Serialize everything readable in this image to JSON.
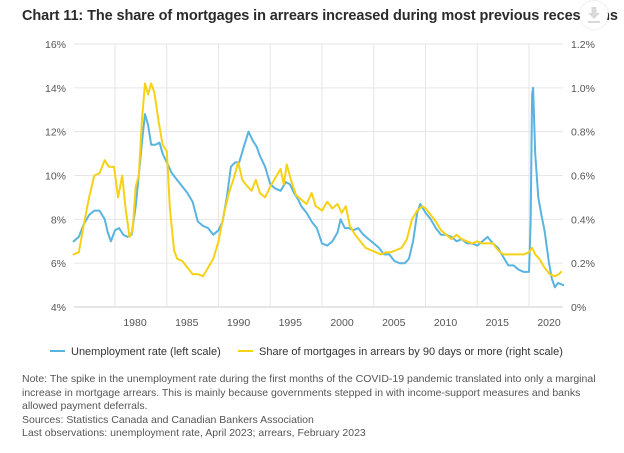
{
  "header": {
    "title": "Chart 11: The share of mortgages in arrears increased during most previous recessions",
    "download_icon": "download-icon"
  },
  "legend": [
    {
      "label": "Unemployment rate (left scale)",
      "color": "#5ab4e0"
    },
    {
      "label": "Share of mortgages in arrears by 90 days or more (right scale)",
      "color": "#f7d116"
    }
  ],
  "notes": {
    "note": "Note: The spike in the unemployment rate during the first months of the COVID-19 pandemic translated into only a marginal increase in mortgage arrears. This is mainly because governments stepped in with income-support measures and banks allowed payment deferrals.",
    "sources": "Sources: Statistics Canada and Canadian Bankers Association",
    "last_observations": "Last observations: unemployment rate, April 2023; arrears, February 2023"
  },
  "chart_data": {
    "type": "line",
    "title": "Chart 11: The share of mortgages in arrears increased during most previous recessions",
    "xlabel": "",
    "ylabel_left": "",
    "ylabel_right": "",
    "xlim": [
      1975.8,
      2023.4
    ],
    "x_ticks": [
      1980,
      1985,
      1990,
      1995,
      2000,
      2005,
      2010,
      2015,
      2020
    ],
    "x_tick_labels": [
      "1980",
      "1985",
      "1990",
      "1995",
      "2000",
      "2005",
      "2010",
      "2015",
      "2020"
    ],
    "ylim_left": [
      4,
      16
    ],
    "y_ticks_left": [
      4,
      6,
      8,
      10,
      12,
      14,
      16
    ],
    "y_tick_labels_left": [
      "4%",
      "6%",
      "8%",
      "10%",
      "12%",
      "14%",
      "16%"
    ],
    "ylim_right": [
      0,
      1.2
    ],
    "y_ticks_right": [
      0,
      0.2,
      0.4,
      0.6,
      0.8,
      1.0,
      1.2
    ],
    "y_tick_labels_right": [
      "0%",
      "0.2%",
      "0.4%",
      "0.6%",
      "0.8%",
      "1.0%",
      "1.2%"
    ],
    "grid": true,
    "legend_position": "bottom",
    "series": [
      {
        "name": "Unemployment rate (left scale)",
        "axis": "left",
        "color": "#5ab4e0",
        "x": [
          1976.0,
          1976.5,
          1977.0,
          1977.5,
          1978.0,
          1978.5,
          1979.0,
          1979.3,
          1979.6,
          1980.0,
          1980.4,
          1980.8,
          1981.2,
          1981.6,
          1982.0,
          1982.3,
          1982.6,
          1982.9,
          1983.2,
          1983.5,
          1983.9,
          1984.3,
          1984.6,
          1985.0,
          1985.5,
          1986.0,
          1986.5,
          1987.0,
          1987.5,
          1988.0,
          1988.5,
          1989.0,
          1989.5,
          1990.0,
          1990.4,
          1990.8,
          1991.2,
          1991.6,
          1992.0,
          1992.5,
          1992.9,
          1993.3,
          1993.7,
          1994.0,
          1994.5,
          1995.0,
          1995.5,
          1996.0,
          1996.5,
          1996.9,
          1997.3,
          1997.7,
          1998.0,
          1998.5,
          1999.0,
          1999.5,
          2000.0,
          2000.5,
          2001.0,
          2001.5,
          2001.8,
          2002.2,
          2002.6,
          2003.0,
          2003.5,
          2004.0,
          2004.5,
          2005.0,
          2005.5,
          2006.0,
          2006.5,
          2007.0,
          2007.5,
          2008.0,
          2008.4,
          2008.8,
          2009.2,
          2009.5,
          2010.0,
          2010.5,
          2011.0,
          2011.5,
          2012.0,
          2012.5,
          2013.0,
          2013.5,
          2014.0,
          2014.5,
          2015.0,
          2015.5,
          2016.0,
          2016.5,
          2017.0,
          2017.5,
          2018.0,
          2018.5,
          2019.0,
          2019.5,
          2020.0,
          2020.15,
          2020.3,
          2020.4,
          2020.6,
          2020.9,
          2021.2,
          2021.5,
          2021.9,
          2022.2,
          2022.5,
          2022.8,
          2023.3
        ],
        "values": [
          7.0,
          7.2,
          7.8,
          8.2,
          8.4,
          8.4,
          8.0,
          7.4,
          7.0,
          7.5,
          7.6,
          7.3,
          7.2,
          7.3,
          8.6,
          10.0,
          11.5,
          12.8,
          12.3,
          11.4,
          11.4,
          11.5,
          11.0,
          10.6,
          10.1,
          9.8,
          9.5,
          9.2,
          8.8,
          7.9,
          7.7,
          7.6,
          7.3,
          7.5,
          7.9,
          9.0,
          10.4,
          10.6,
          10.6,
          11.4,
          12.0,
          11.6,
          11.3,
          10.9,
          10.4,
          9.6,
          9.4,
          9.3,
          9.7,
          9.6,
          9.2,
          8.9,
          8.6,
          8.3,
          7.9,
          7.6,
          6.9,
          6.8,
          7.0,
          7.4,
          8.0,
          7.6,
          7.6,
          7.5,
          7.6,
          7.3,
          7.1,
          6.9,
          6.7,
          6.4,
          6.4,
          6.1,
          6.0,
          6.0,
          6.2,
          7.0,
          8.3,
          8.7,
          8.3,
          8.0,
          7.6,
          7.3,
          7.3,
          7.2,
          7.0,
          7.1,
          6.9,
          6.9,
          6.8,
          7.0,
          7.2,
          6.9,
          6.7,
          6.3,
          5.9,
          5.9,
          5.7,
          5.6,
          5.6,
          7.8,
          13.7,
          14.0,
          11.0,
          9.0,
          8.2,
          7.5,
          6.1,
          5.3,
          4.9,
          5.1,
          5.0
        ]
      },
      {
        "name": "Share of mortgages in arrears by 90 days or more (right scale)",
        "axis": "right",
        "color": "#f7d116",
        "x": [
          1976.0,
          1976.5,
          1977.0,
          1977.5,
          1978.0,
          1978.5,
          1979.0,
          1979.4,
          1979.9,
          1980.3,
          1980.7,
          1981.0,
          1981.4,
          1981.7,
          1982.0,
          1982.3,
          1982.6,
          1982.9,
          1983.2,
          1983.5,
          1983.8,
          1984.2,
          1984.6,
          1985.0,
          1985.3,
          1985.7,
          1986.0,
          1986.5,
          1987.0,
          1987.5,
          1988.0,
          1988.5,
          1989.0,
          1989.5,
          1990.0,
          1990.5,
          1991.0,
          1991.5,
          1991.9,
          1992.3,
          1992.8,
          1993.2,
          1993.6,
          1994.0,
          1994.5,
          1995.0,
          1995.5,
          1996.0,
          1996.3,
          1996.6,
          1997.0,
          1997.5,
          1998.0,
          1998.5,
          1999.0,
          1999.4,
          2000.0,
          2000.5,
          2001.0,
          2001.5,
          2001.9,
          2002.3,
          2002.7,
          2003.2,
          2003.7,
          2004.2,
          2004.7,
          2005.2,
          2005.7,
          2006.2,
          2006.7,
          2007.2,
          2007.7,
          2008.2,
          2008.7,
          2009.2,
          2009.7,
          2010.0,
          2010.5,
          2011.0,
          2011.5,
          2012.0,
          2012.5,
          2013.0,
          2013.5,
          2014.0,
          2014.5,
          2015.0,
          2015.5,
          2016.0,
          2016.5,
          2017.0,
          2017.5,
          2018.0,
          2018.5,
          2019.0,
          2019.5,
          2020.0,
          2020.3,
          2020.6,
          2021.0,
          2021.5,
          2022.0,
          2022.5,
          2022.9,
          2023.1
        ],
        "values": [
          0.24,
          0.25,
          0.38,
          0.5,
          0.6,
          0.61,
          0.67,
          0.64,
          0.64,
          0.5,
          0.6,
          0.46,
          0.32,
          0.35,
          0.55,
          0.6,
          0.85,
          1.02,
          0.97,
          1.02,
          0.98,
          0.85,
          0.74,
          0.71,
          0.45,
          0.26,
          0.22,
          0.21,
          0.18,
          0.15,
          0.15,
          0.14,
          0.18,
          0.22,
          0.3,
          0.42,
          0.52,
          0.59,
          0.66,
          0.58,
          0.55,
          0.53,
          0.58,
          0.52,
          0.5,
          0.55,
          0.59,
          0.63,
          0.56,
          0.65,
          0.58,
          0.51,
          0.49,
          0.47,
          0.52,
          0.46,
          0.44,
          0.48,
          0.45,
          0.47,
          0.43,
          0.46,
          0.37,
          0.33,
          0.3,
          0.27,
          0.26,
          0.25,
          0.24,
          0.25,
          0.25,
          0.26,
          0.27,
          0.31,
          0.4,
          0.44,
          0.46,
          0.45,
          0.42,
          0.39,
          0.35,
          0.33,
          0.31,
          0.33,
          0.31,
          0.3,
          0.29,
          0.3,
          0.29,
          0.29,
          0.29,
          0.26,
          0.24,
          0.24,
          0.24,
          0.24,
          0.24,
          0.25,
          0.27,
          0.24,
          0.22,
          0.18,
          0.15,
          0.14,
          0.15,
          0.16
        ]
      }
    ]
  }
}
